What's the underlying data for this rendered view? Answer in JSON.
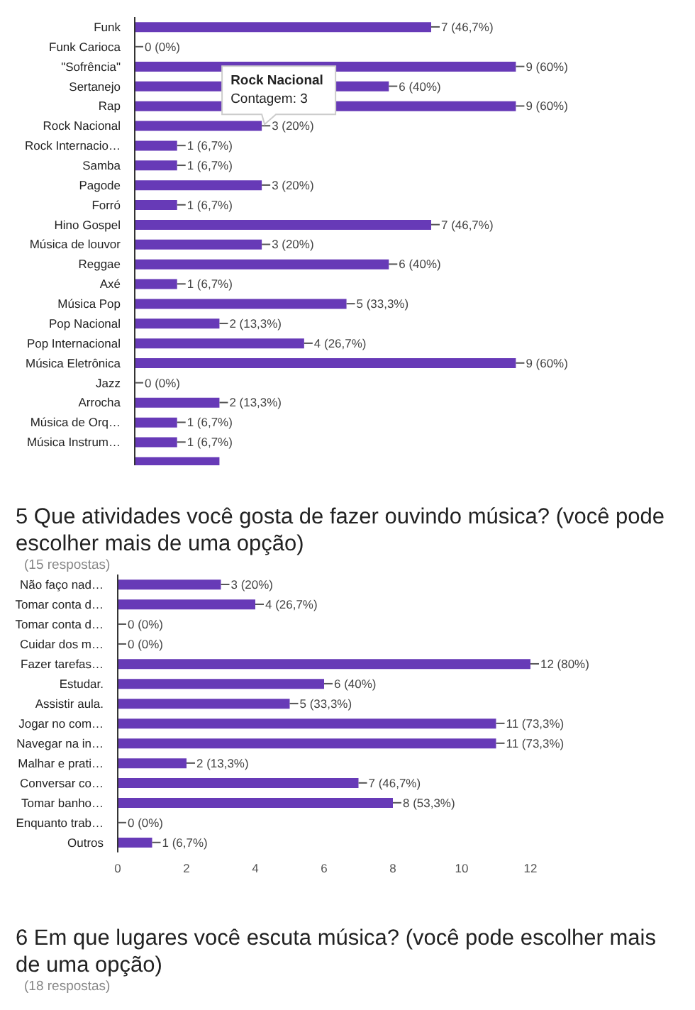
{
  "chart_data": [
    {
      "type": "bar",
      "orientation": "horizontal",
      "categories": [
        "Funk",
        "Funk Carioca",
        "\"Sofrência\"",
        "Sertanejo",
        "Rap",
        "Rock Nacional",
        "Rock Internacio…",
        "Samba",
        "Pagode",
        "Forró",
        "Hino Gospel",
        "Música de louvor",
        "Reggae",
        "Axé",
        "Música Pop",
        "Pop Nacional",
        "Pop Internacional",
        "Música Eletrônica",
        "Jazz",
        "Arrocha",
        "Música de Orq…",
        "Música Instrum…",
        null
      ],
      "values": [
        7,
        0,
        9,
        6,
        9,
        3,
        1,
        1,
        3,
        1,
        7,
        3,
        6,
        1,
        5,
        2,
        4,
        9,
        0,
        2,
        1,
        1,
        2
      ],
      "value_labels": [
        "7 (46,7%)",
        "0 (0%)",
        "9 (60%)",
        "6 (40%)",
        "9 (60%)",
        "3 (20%)",
        "1 (6,7%)",
        "1 (6,7%)",
        "3 (20%)",
        "1 (6,7%)",
        "7 (46,7%)",
        "3 (20%)",
        "6 (40%)",
        "1 (6,7%)",
        "5 (33,3%)",
        "2 (13,3%)",
        "4 (26,7%)",
        "9 (60%)",
        "0 (0%)",
        "2 (13,3%)",
        "1 (6,7%)",
        "1 (6,7%)",
        null
      ],
      "color": "#673ab7",
      "tick_labels": "y",
      "annotations": [
        {
          "text": "Rock Nacional\nContagem: 3",
          "x": 3,
          "y": "Rock Nacional"
        }
      ]
    },
    {
      "type": "bar",
      "orientation": "horizontal",
      "title": "5 Que atividades você gosta de fazer ouvindo música? (você pode escolher mais de uma opção)",
      "subtitle": "(15 respostas)",
      "categories": [
        "Não faço nad…",
        "Tomar conta d…",
        "Tomar conta d…",
        "Cuidar dos m…",
        "Fazer tarefas…",
        "Estudar.",
        "Assistir aula.",
        "Jogar no com…",
        "Navegar na in…",
        "Malhar e prati…",
        "Conversar co…",
        "Tomar banho…",
        "Enquanto trab…",
        "Outros"
      ],
      "values": [
        3,
        4,
        0,
        0,
        12,
        6,
        5,
        11,
        11,
        2,
        7,
        8,
        0,
        1
      ],
      "value_labels": [
        "3 (20%)",
        "4 (26,7%)",
        "0 (0%)",
        "0 (0%)",
        "12 (80%)",
        "6 (40%)",
        "5 (33,3%)",
        "11 (73,3%)",
        "11 (73,3%)",
        "2 (13,3%)",
        "7 (46,7%)",
        "8 (53,3%)",
        "0 (0%)",
        "1 (6,7%)"
      ],
      "color": "#673ab7",
      "xlim": [
        0,
        12
      ],
      "xticks": [
        0,
        2,
        4,
        6,
        8,
        10,
        12
      ]
    },
    {
      "type": "other",
      "title": "6 Em que lugares você escuta música? (você pode escolher mais de uma opção)",
      "subtitle": "(18 respostas)"
    }
  ]
}
